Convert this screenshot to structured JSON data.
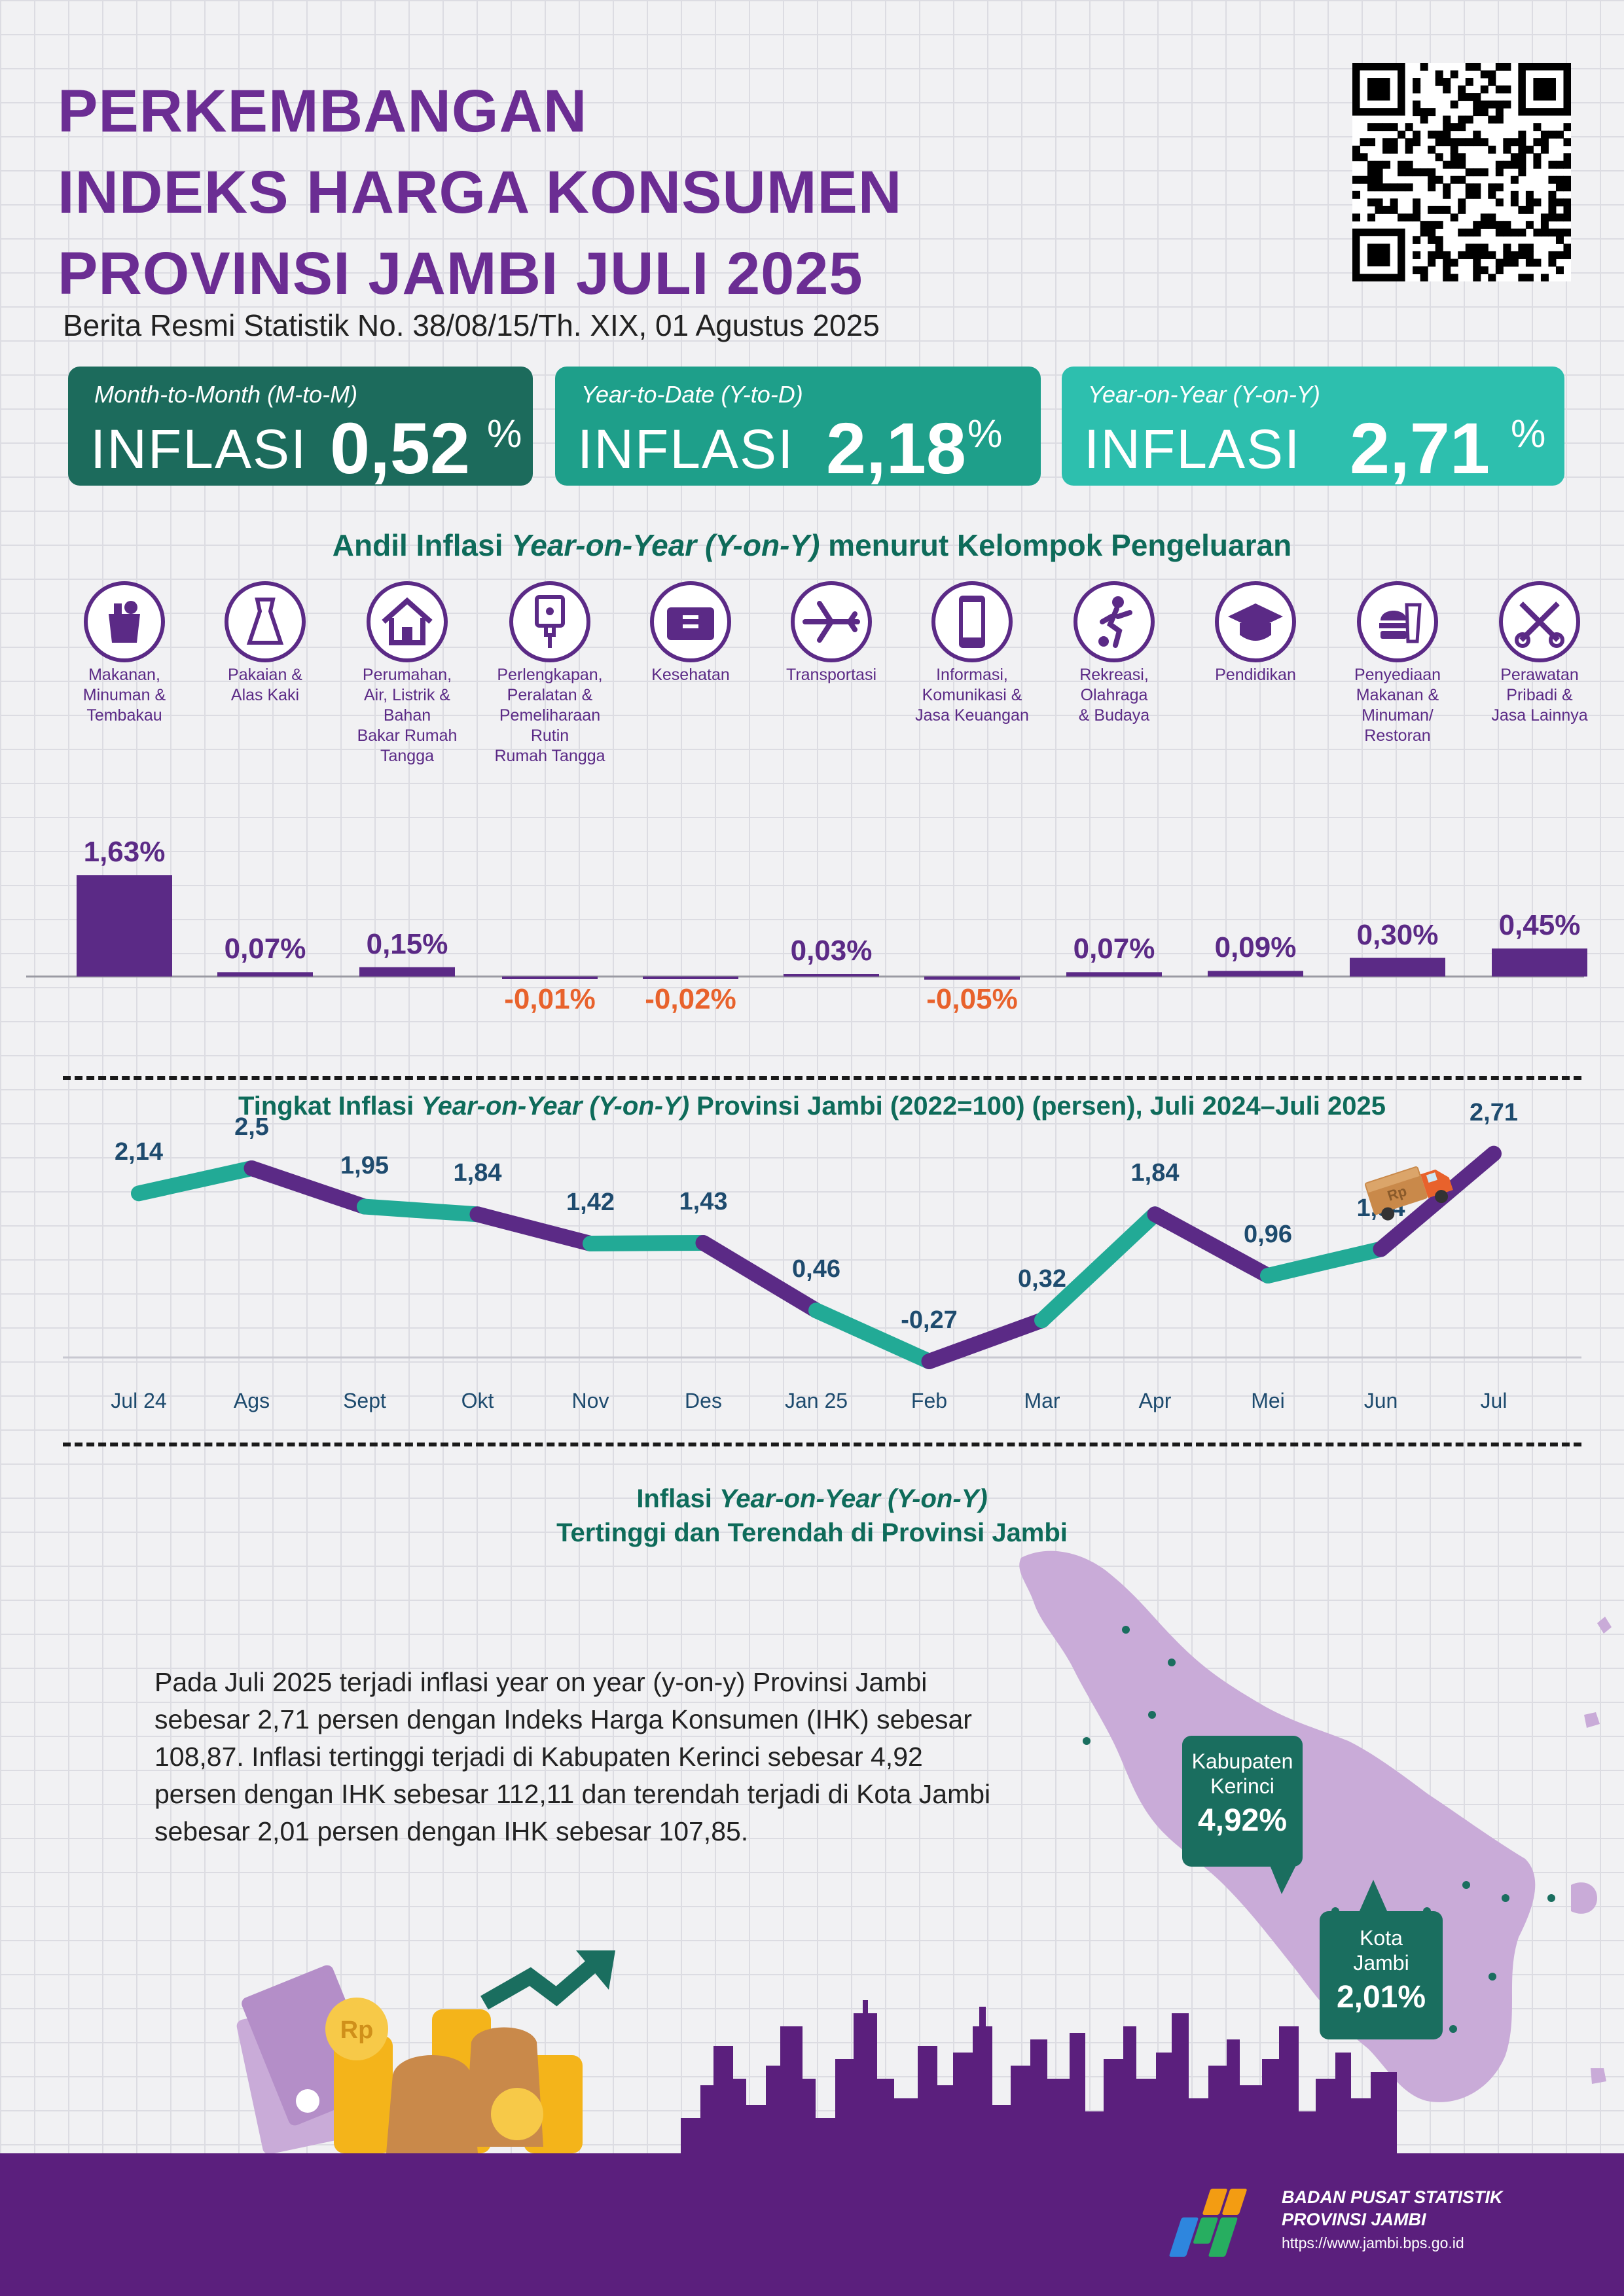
{
  "header": {
    "title_lines": [
      "PERKEMBANGAN",
      "INDEKS HARGA KONSUMEN",
      "PROVINSI JAMBI JULI 2025"
    ],
    "subtitle": "Berita Resmi Statistik No. 38/08/15/Th. XIX, 01 Agustus 2025"
  },
  "cards": [
    {
      "label": "Month-to-Month (M-to-M)",
      "word": "INFLASI",
      "value": "0,52",
      "unit": "%",
      "color": "#1c6b5c"
    },
    {
      "label": "Year-to-Date (Y-to-D)",
      "word": "INFLASI",
      "value": "2,18",
      "unit": "%",
      "color": "#1e9f8a"
    },
    {
      "label": "Year-on-Year (Y-on-Y)",
      "word": "INFLASI",
      "value": "2,71",
      "unit": "%",
      "color": "#2dbfae"
    }
  ],
  "bar_section": {
    "title_pre": "Andil Inflasi ",
    "title_em": "Year-on-Year (Y-on-Y)",
    "title_post": " menurut Kelompok Pengeluaran"
  },
  "categories": [
    {
      "icon": "grocery-bag-icon",
      "label_lines": [
        "Makanan,",
        "Minuman &",
        "Tembakau"
      ]
    },
    {
      "icon": "dress-icon",
      "label_lines": [
        "Pakaian &",
        "Alas Kaki"
      ]
    },
    {
      "icon": "house-icon",
      "label_lines": [
        "Perumahan,",
        "Air, Listrik &",
        "Bahan",
        "Bakar Rumah",
        "Tangga"
      ]
    },
    {
      "icon": "power-plug-icon",
      "label_lines": [
        "Perlengkapan,",
        "Peralatan &",
        "Pemeliharaan",
        "Rutin",
        "Rumah Tangga"
      ]
    },
    {
      "icon": "first-aid-kit-icon",
      "label_lines": [
        "Kesehatan"
      ]
    },
    {
      "icon": "airplane-icon",
      "label_lines": [
        "Transportasi"
      ]
    },
    {
      "icon": "smartphone-icon",
      "label_lines": [
        "Informasi,",
        "Komunikasi &",
        "Jasa Keuangan"
      ]
    },
    {
      "icon": "soccer-player-icon",
      "label_lines": [
        "Rekreasi,",
        "Olahraga",
        "& Budaya"
      ]
    },
    {
      "icon": "graduation-cap-icon",
      "label_lines": [
        "Pendidikan"
      ]
    },
    {
      "icon": "fast-food-icon",
      "label_lines": [
        "Penyediaan",
        "Makanan &",
        "Minuman/",
        "Restoran"
      ]
    },
    {
      "icon": "scissors-comb-icon",
      "label_lines": [
        "Perawatan",
        "Pribadi &",
        "Jasa Lainnya"
      ]
    }
  ],
  "line_section": {
    "title_pre": "Tingkat Inflasi ",
    "title_em": "Year-on-Year (Y-on-Y)",
    "title_post": " Provinsi Jambi (2022=100) (persen), Juli 2024–Juli 2025"
  },
  "map_section": {
    "title_line1_pre": "Inflasi ",
    "title_line1_em": "Year-on-Year (Y-on-Y)",
    "title_line2": "Tertinggi dan Terendah di Provinsi Jambi",
    "paragraph": "Pada Juli 2025 terjadi inflasi year on year (y-on-y) Provinsi Jambi sebesar 2,71 persen dengan Indeks Harga Konsumen (IHK) sebesar 108,87. Inflasi tertinggi terjadi di Kabupaten Kerinci sebesar 4,92 persen dengan IHK sebesar 112,11 dan terendah terjadi di Kota Jambi sebesar 2,01 persen dengan IHK sebesar 107,85.",
    "highest": {
      "name_lines": [
        "Kabupaten",
        "Kerinci"
      ],
      "value": "4,92%"
    },
    "lowest": {
      "name_lines": [
        "Kota",
        "Jambi"
      ],
      "value": "2,01%"
    }
  },
  "truck": {
    "badge": "Rp"
  },
  "coins": {
    "badge": "Rp"
  },
  "footer": {
    "org_line1": "BADAN PUSAT STATISTIK",
    "org_line2": "PROVINSI JAMBI",
    "url": "https://www.jambi.bps.go.id"
  },
  "colors": {
    "purple": "#5b2a86",
    "title_purple": "#6b2d93",
    "teal": "#22aa96",
    "negative": "#e8622c",
    "dark_green": "#1a6e5f"
  },
  "chart_data": [
    {
      "type": "bar",
      "categories": [
        "Makanan, Minuman & Tembakau",
        "Pakaian & Alas Kaki",
        "Perumahan, Air, Listrik & Bahan Bakar Rumah Tangga",
        "Perlengkapan, Peralatan & Pemeliharaan Rutin Rumah Tangga",
        "Kesehatan",
        "Transportasi",
        "Informasi, Komunikasi & Jasa Keuangan",
        "Rekreasi, Olahraga & Budaya",
        "Pendidikan",
        "Penyediaan Makanan & Minuman/ Restoran",
        "Perawatan Pribadi & Jasa Lainnya"
      ],
      "values": [
        1.63,
        0.07,
        0.15,
        -0.01,
        -0.02,
        0.03,
        -0.05,
        0.07,
        0.09,
        0.3,
        0.45
      ],
      "labels": [
        "1,63%",
        "0,07%",
        "0,15%",
        "-0,01%",
        "-0,02%",
        "0,03%",
        "-0,05%",
        "0,07%",
        "0,09%",
        "0,30%",
        "0,45%"
      ],
      "title": "Andil Inflasi Year-on-Year (Y-on-Y) menurut Kelompok Pengeluaran"
    },
    {
      "type": "line",
      "title": "Tingkat Inflasi Year-on-Year (Y-on-Y) Provinsi Jambi (2022=100) (persen), Juli 2024–Juli 2025",
      "x": [
        "Jul 24",
        "Ags",
        "Sept",
        "Okt",
        "Nov",
        "Des",
        "Jan 25",
        "Feb",
        "Mar",
        "Apr",
        "Mei",
        "Jun",
        "Jul"
      ],
      "values": [
        2.14,
        2.5,
        1.95,
        1.84,
        1.42,
        1.43,
        0.46,
        -0.27,
        0.32,
        1.84,
        0.96,
        1.34,
        2.71
      ],
      "labels": [
        "2,14",
        "2,5",
        "1,95",
        "1,84",
        "1,42",
        "1,43",
        "0,46",
        "-0,27",
        "0,32",
        "1,84",
        "0,96",
        "1,34",
        "2,71"
      ]
    }
  ]
}
